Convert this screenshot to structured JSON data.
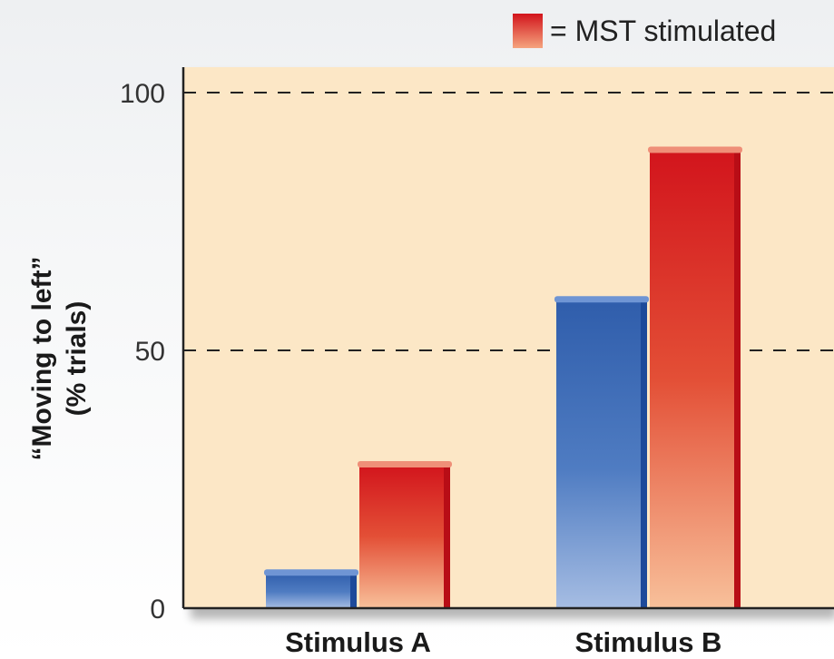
{
  "chart_data": {
    "type": "bar",
    "categories": [
      "Stimulus A",
      "Stimulus B"
    ],
    "series": [
      {
        "values": [
          7,
          60
        ],
        "color": "#3361b0"
      },
      {
        "name": "= MST stimulated",
        "values": [
          28,
          89
        ],
        "color": "#d42a24"
      }
    ],
    "ylabel_line1": "“Moving to left”",
    "ylabel_line2": "(% trials)",
    "ylim": [
      0,
      100
    ],
    "yticks": [
      0,
      50,
      100
    ],
    "dashed_gridlines": [
      50,
      100
    ],
    "plot_background": "#fce7c6",
    "legend": {
      "label": "= MST stimulated",
      "placement": "top-right"
    }
  }
}
